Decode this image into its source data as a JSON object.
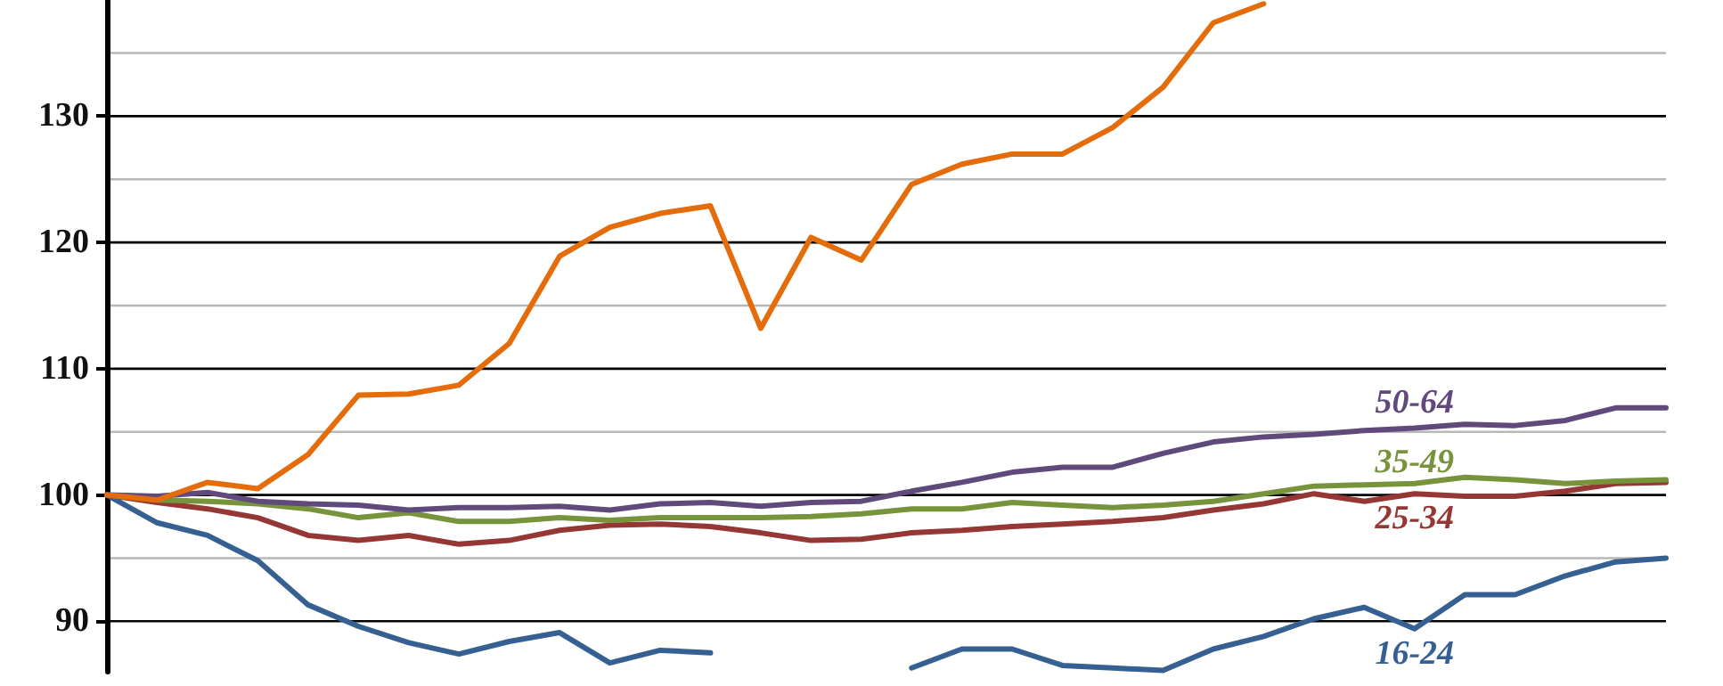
{
  "chart_data": {
    "type": "line",
    "categories": [
      null,
      null,
      null,
      null,
      null,
      null,
      null,
      null,
      null,
      null,
      null,
      null,
      null,
      null,
      null,
      null,
      null,
      null,
      null,
      null,
      null,
      null,
      null,
      null,
      null,
      null,
      null,
      null,
      null,
      null,
      null,
      null
    ],
    "series": [
      {
        "name": "16-24",
        "color": "#376092",
        "values": [
          100,
          97.8,
          96.8,
          94.8,
          91.3,
          89.6,
          88.3,
          87.4,
          88.4,
          89.1,
          86.7,
          87.7,
          87.5,
          null,
          null,
          null,
          86.3,
          87.8,
          87.8,
          86.5,
          86.3,
          86.1,
          87.8,
          88.8,
          90.2,
          91.1,
          89.4,
          92.1,
          92.1,
          93.6,
          94.7,
          95.0
        ]
      },
      {
        "name": "25-34",
        "color": "#953735",
        "values": [
          100,
          99.4,
          98.9,
          98.2,
          96.8,
          96.4,
          96.8,
          96.1,
          96.4,
          97.2,
          97.6,
          97.7,
          97.5,
          97.0,
          96.4,
          96.5,
          97.0,
          97.2,
          97.5,
          97.7,
          97.9,
          98.2,
          98.8,
          99.3,
          100.1,
          99.5,
          100.1,
          99.9,
          99.9,
          100.3,
          100.9,
          101.0
        ]
      },
      {
        "name": "35-49",
        "color": "#77933c",
        "values": [
          100,
          99.6,
          99.5,
          99.3,
          98.9,
          98.2,
          98.6,
          97.9,
          97.9,
          98.2,
          98.0,
          98.2,
          98.2,
          98.2,
          98.3,
          98.5,
          98.9,
          98.9,
          99.4,
          99.2,
          99.0,
          99.2,
          99.5,
          100.1,
          100.7,
          100.8,
          100.9,
          101.4,
          101.2,
          100.9,
          101.1,
          101.2
        ]
      },
      {
        "name": "50-64",
        "color": "#604a7b",
        "values": [
          100,
          99.9,
          100.2,
          99.5,
          99.3,
          99.2,
          98.8,
          99.0,
          99.0,
          99.1,
          98.8,
          99.3,
          99.4,
          99.1,
          99.4,
          99.5,
          100.3,
          101.0,
          101.8,
          102.2,
          102.2,
          103.3,
          104.2,
          104.6,
          104.8,
          105.1,
          105.3,
          105.6,
          105.5,
          105.9,
          106.9,
          106.9
        ]
      },
      {
        "color": "#e46c0a",
        "values": [
          100,
          99.6,
          101,
          100.5,
          103.2,
          107.9,
          108,
          108.7,
          112,
          118.9,
          121.2,
          122.3,
          122.9,
          113.2,
          120.4,
          118.6,
          124.6,
          126.2,
          127,
          127,
          129.1,
          132.3,
          137.4,
          138.9,
          null,
          null,
          null,
          null,
          null,
          null,
          null,
          null
        ]
      }
    ],
    "ylim": [
      86,
      139.2
    ],
    "yticks": [
      90,
      {
        "value": 95,
        "label": null
      },
      100,
      {
        "value": 105,
        "label": null
      },
      110,
      {
        "value": 115,
        "label": null
      },
      120,
      {
        "value": 125,
        "label": null
      },
      130,
      {
        "value": 135,
        "label": null
      }
    ],
    "grid": "y",
    "legend": false,
    "marker": "none",
    "line_style": "solid"
  }
}
